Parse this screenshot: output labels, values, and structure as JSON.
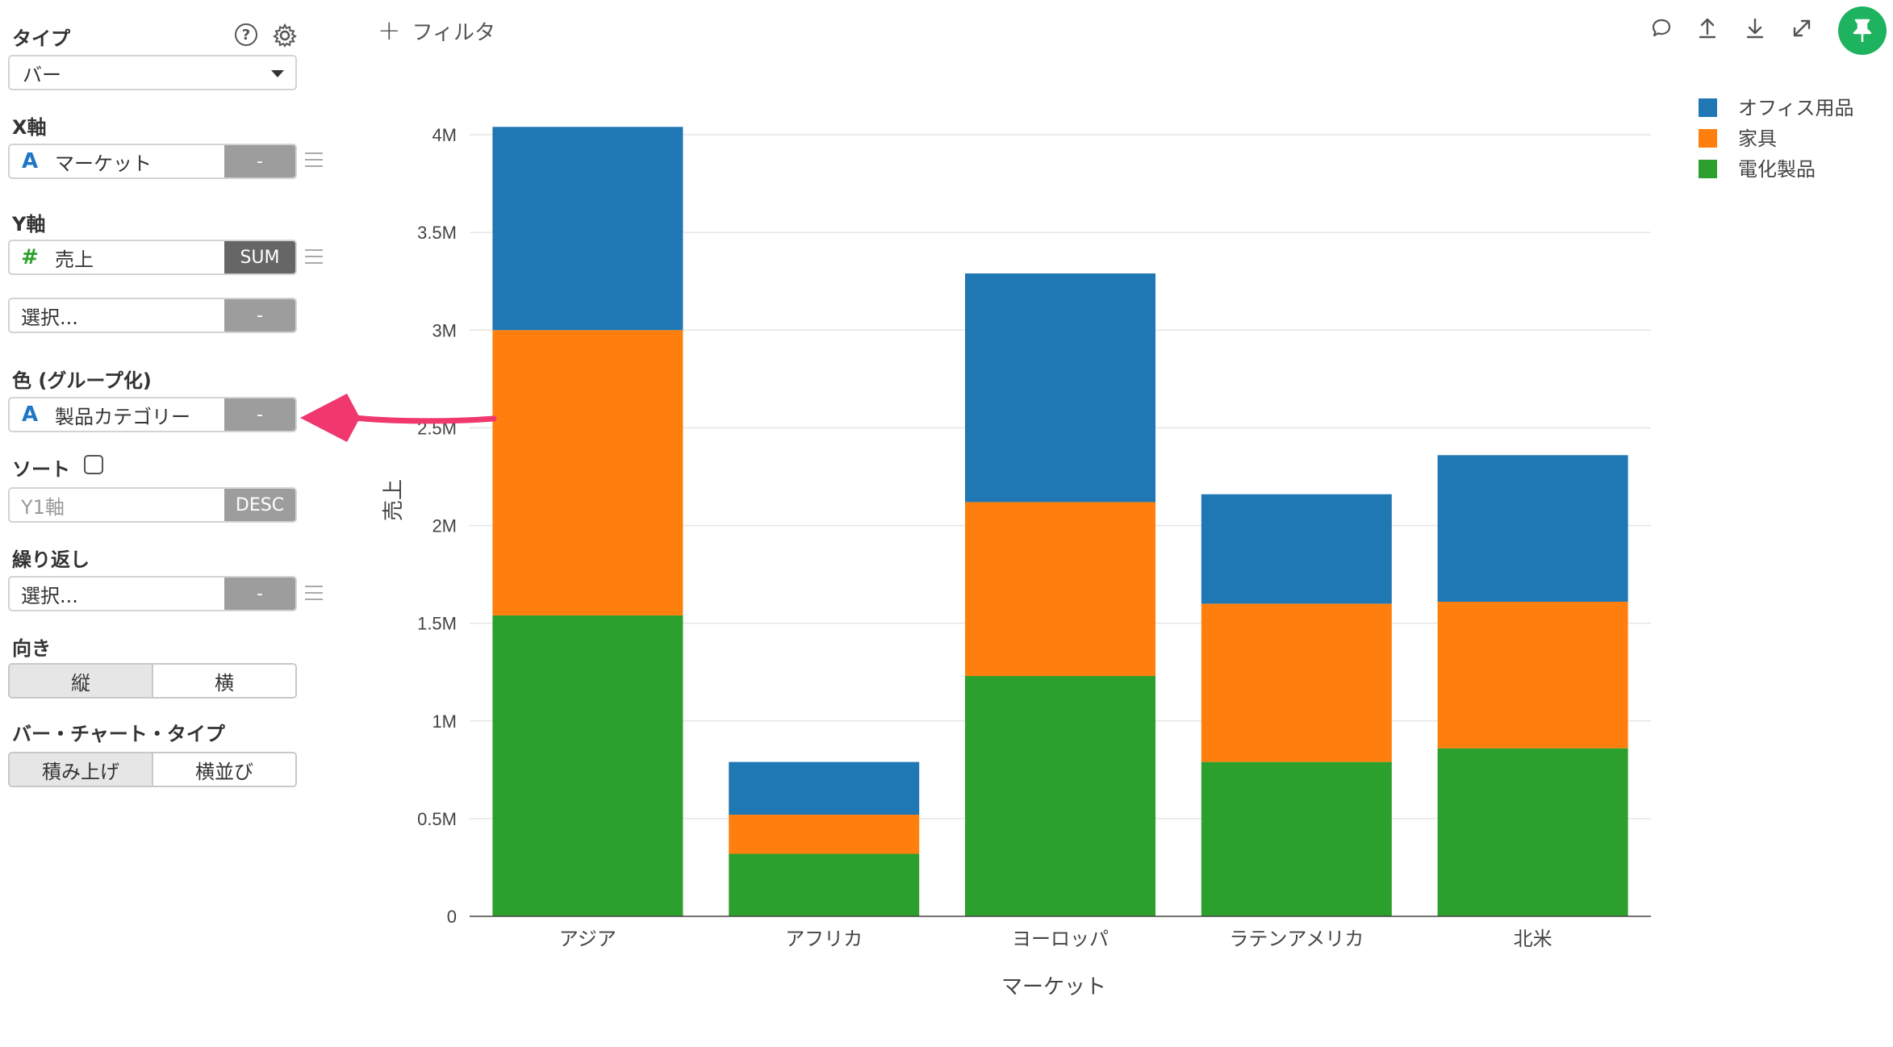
{
  "sidebar": {
    "type_label": "タイプ",
    "type_value": "バー",
    "x_axis_label": "X軸",
    "x_field": "マーケット",
    "x_agg": "-",
    "y_axis_label": "Y軸",
    "y_field": "売上",
    "y_agg": "SUM",
    "y2_placeholder": "選択...",
    "y2_agg": "-",
    "color_label": "色 (グループ化)",
    "color_field": "製品カテゴリー",
    "color_agg": "-",
    "sort_label": "ソート",
    "sort_field_placeholder": "Y1軸",
    "sort_order": "DESC",
    "repeat_label": "繰り返し",
    "repeat_placeholder": "選択...",
    "repeat_agg": "-",
    "orientation_label": "向き",
    "orientation_options": [
      "縦",
      "横"
    ],
    "orientation_selected": "縦",
    "bar_type_label": "バー・チャート・タイプ",
    "bar_type_options": [
      "積み上げ",
      "横並び"
    ],
    "bar_type_selected": "積み上げ"
  },
  "topbar": {
    "filter_label": "フィルタ",
    "tools": [
      "comment-icon",
      "upload-icon",
      "download-icon",
      "expand-icon",
      "pin-icon"
    ]
  },
  "colors": {
    "blue": "#1f77b4",
    "orange": "#ff7f0e",
    "green": "#2ca02c",
    "accent": "#1db35f",
    "annotation_arrow": "#f0376e"
  },
  "chart_data": {
    "type": "bar",
    "stacked": true,
    "categories": [
      "アジア",
      "アフリカ",
      "ヨーロッパ",
      "ラテンアメリカ",
      "北米"
    ],
    "series": [
      {
        "name": "電化製品",
        "color": "#2ca02c",
        "values": [
          1540000,
          320000,
          1230000,
          790000,
          860000
        ]
      },
      {
        "name": "家具",
        "color": "#ff7f0e",
        "values": [
          1460000,
          200000,
          890000,
          810000,
          750000
        ]
      },
      {
        "name": "オフィス用品",
        "color": "#1f77b4",
        "values": [
          1040000,
          270000,
          1170000,
          560000,
          750000
        ]
      }
    ],
    "xlabel": "マーケット",
    "ylabel": "売上",
    "ylim": [
      0,
      4000000
    ],
    "yticks": [
      {
        "value": 0,
        "label": "0"
      },
      {
        "value": 500000,
        "label": "0.5M"
      },
      {
        "value": 1000000,
        "label": "1M"
      },
      {
        "value": 1500000,
        "label": "1.5M"
      },
      {
        "value": 2000000,
        "label": "2M"
      },
      {
        "value": 2500000,
        "label": "2.5M"
      },
      {
        "value": 3000000,
        "label": "3M"
      },
      {
        "value": 3500000,
        "label": "3.5M"
      },
      {
        "value": 4000000,
        "label": "4M"
      }
    ],
    "legend": [
      "オフィス用品",
      "家具",
      "電化製品"
    ],
    "legend_position": "top-right",
    "grid": true
  }
}
